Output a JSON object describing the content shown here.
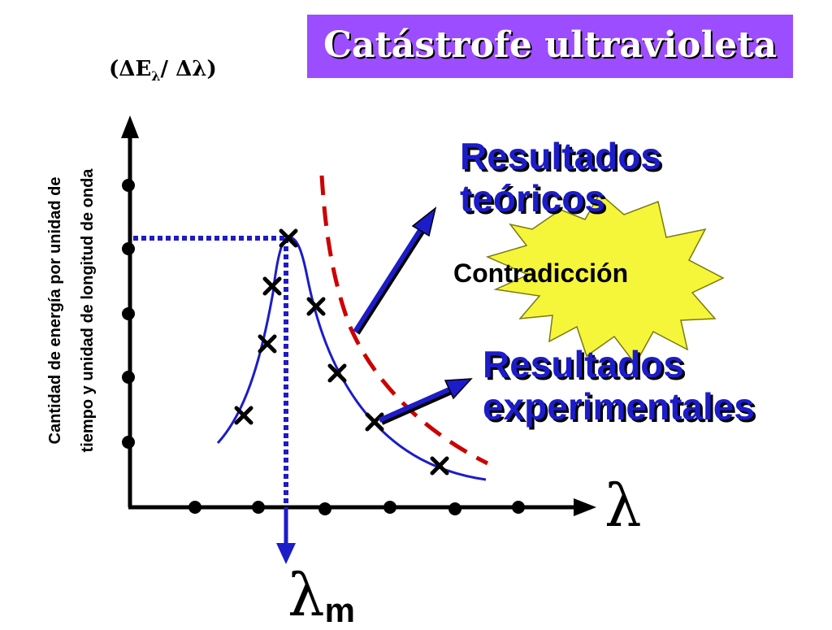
{
  "title": "Catástrofe ultravioleta",
  "y_axis_label_line1": "Cantidad de energía por unidad de",
  "y_axis_label_line2": "tiempo y unidad de longitud de onda",
  "y_axis_symbol": "(ΔEλ/ Δλ)",
  "x_axis_symbol": "λ",
  "peak_symbol": "λ",
  "peak_subscript": "m",
  "theoretical_label": [
    "Resultados",
    "teóricos"
  ],
  "experimental_label": [
    "Resultados",
    "experimentales"
  ],
  "contradiction_label": "Contradicción",
  "colors": {
    "title_bg": "#9b4dff",
    "label_blue": "#1c1cc8",
    "curve_blue": "#1c1cc8",
    "theory_red": "#cc0000",
    "starburst": "#f5f53a"
  }
}
